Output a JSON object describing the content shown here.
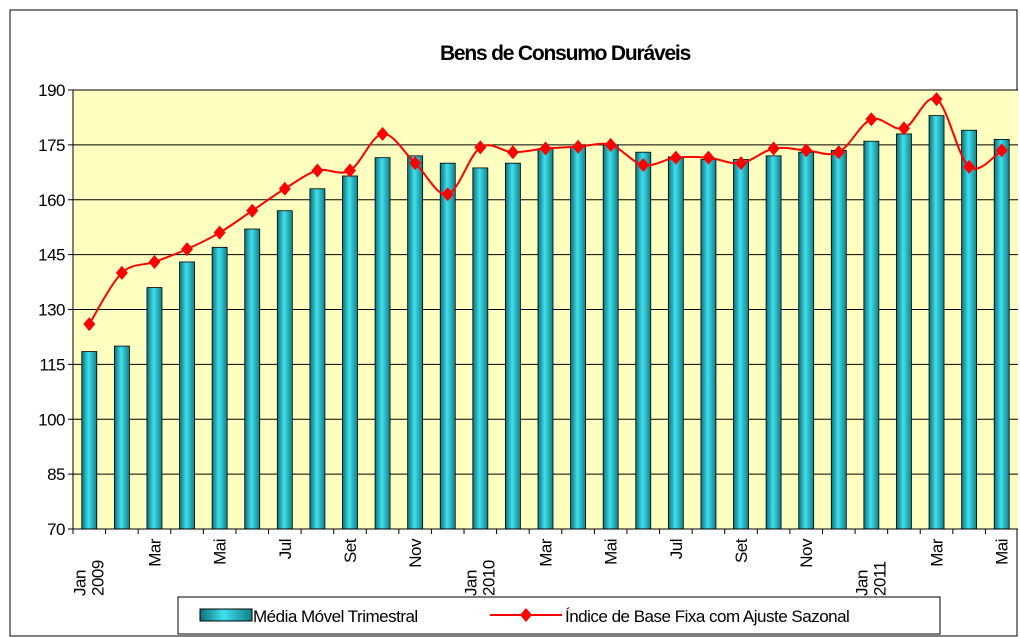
{
  "chart_data": {
    "type": "bar_line",
    "title": "Bens de Consumo Duráveis",
    "categories": [
      "Jan 2009",
      null,
      "Mar",
      null,
      "Mai",
      null,
      "Jul",
      null,
      "Set",
      null,
      "Nov",
      null,
      "Jan 2010",
      null,
      "Mar",
      null,
      "Mai",
      null,
      "Jul",
      null,
      "Set",
      null,
      "Nov",
      null,
      "Jan 2011",
      null,
      "Mar",
      null,
      "Mai"
    ],
    "ylim": [
      70,
      190
    ],
    "yticks": [
      70,
      85,
      100,
      115,
      130,
      145,
      160,
      175,
      190
    ],
    "grid": true,
    "series": [
      {
        "name": "Média Móvel Trimestral",
        "type": "bar",
        "color": "#33cccc",
        "values": [
          118.5,
          120,
          136,
          143,
          147,
          152,
          157,
          163,
          166.5,
          171.5,
          172,
          170,
          168.7,
          170,
          174,
          174.5,
          175,
          173,
          171.7,
          171,
          171,
          172,
          173,
          173.5,
          176,
          178,
          183,
          179,
          176.5
        ]
      },
      {
        "name": "Índice de Base Fixa com Ajuste Sazonal",
        "type": "line",
        "color": "#ff0000",
        "values": [
          126,
          140,
          143,
          146.5,
          151,
          157,
          163,
          168,
          168,
          178,
          170,
          161.5,
          174.3,
          173,
          174,
          174.5,
          175,
          169.5,
          171.5,
          171.5,
          170,
          174,
          173.5,
          173,
          182,
          179.5,
          187.5,
          169,
          173.5
        ]
      }
    ]
  }
}
